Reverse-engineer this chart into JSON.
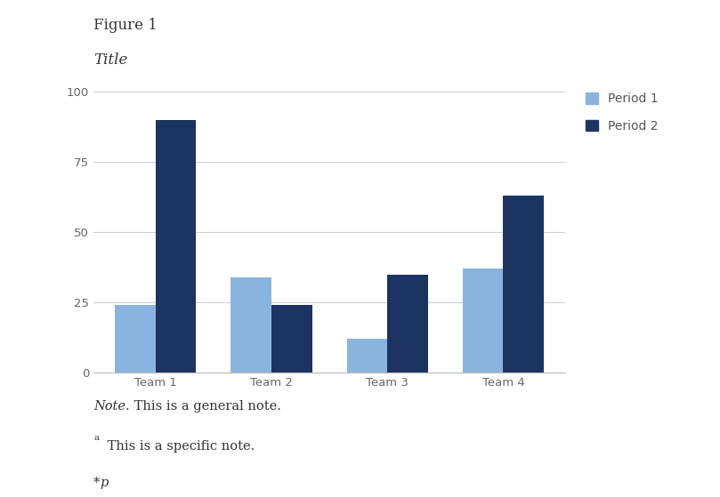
{
  "figure_label": "Figure 1",
  "title": "Title",
  "categories": [
    "Team 1",
    "Team 2",
    "Team 3",
    "Team 4"
  ],
  "period1_values": [
    24,
    34,
    12,
    37
  ],
  "period2_values": [
    90,
    24,
    35,
    63
  ],
  "period1_color": "#8ab4e0",
  "period2_color": "#1c3461",
  "ylim": [
    0,
    100
  ],
  "yticks": [
    0,
    25,
    50,
    75,
    100
  ],
  "legend_labels": [
    "Period 1",
    "Period 2"
  ],
  "note_italic": "Note.",
  "note_general_rest": " This is a general note.",
  "note_specific_sup": "a",
  "note_specific_rest": " This is a specific note.",
  "note_p": "*",
  "note_p_italic": "p",
  "background_color": "#ffffff",
  "grid_color": "#d0d0d0",
  "bar_width": 0.35,
  "figure_label_fontsize": 12,
  "title_fontsize": 12,
  "tick_fontsize": 9.5,
  "legend_fontsize": 10,
  "note_fontsize": 10.5
}
